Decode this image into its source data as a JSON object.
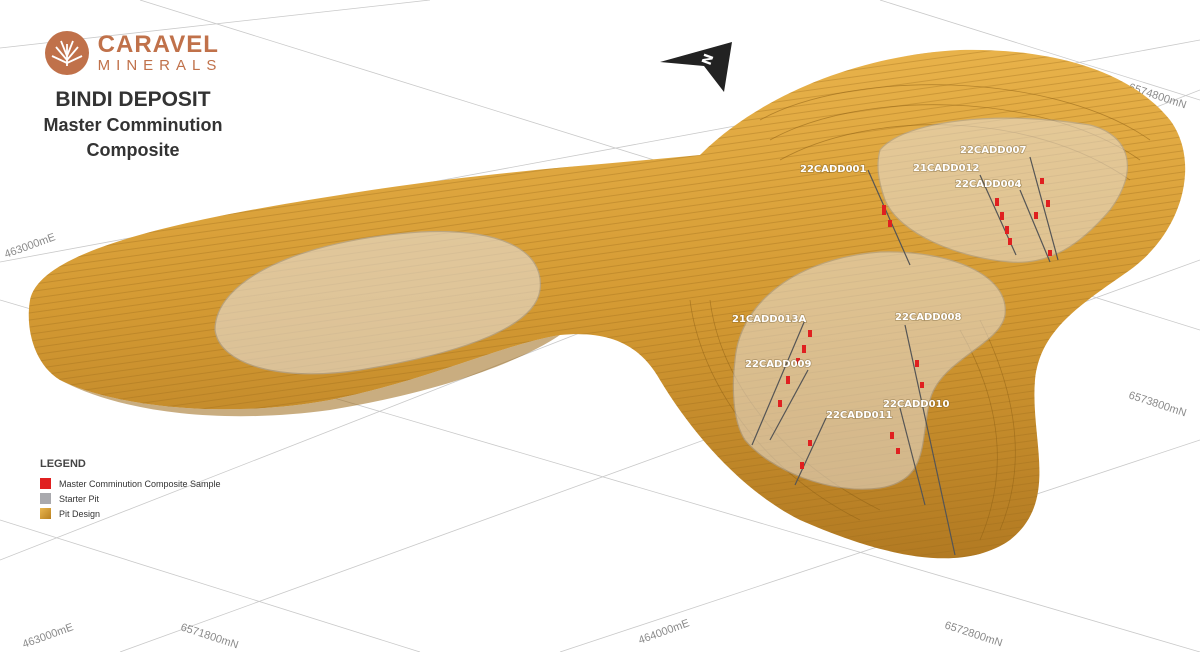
{
  "header": {
    "logo_name": "CARAVEL",
    "logo_sub": "MINERALS",
    "title": "BINDI DEPOSIT",
    "subtitle_line1": "Master Comminution",
    "subtitle_line2": "Composite"
  },
  "grid_labels": {
    "e_463000_top": "463000mE",
    "e_463000_bottom": "463000mE",
    "e_464000": "464000mE",
    "n_6571800": "6571800mN",
    "n_6572800": "6572800mN",
    "n_6573800": "6573800mN",
    "n_6574800": "6574800mN"
  },
  "drill_holes": [
    {
      "id": "22CADD001"
    },
    {
      "id": "22CADD007"
    },
    {
      "id": "21CADD012"
    },
    {
      "id": "22CADD004"
    },
    {
      "id": "21CADD013A"
    },
    {
      "id": "22CADD008"
    },
    {
      "id": "22CADD009"
    },
    {
      "id": "22CADD010"
    },
    {
      "id": "22CADD011"
    }
  ],
  "legend": {
    "title": "LEGEND",
    "items": [
      {
        "label": "Master Comminution Composite Sample",
        "color": "#e02020"
      },
      {
        "label": "Starter Pit",
        "color": "#a9a9ad"
      },
      {
        "label": "Pit Design",
        "color": "#d9a03a"
      }
    ]
  },
  "icons": {
    "north_arrow": "north-arrow-icon",
    "logo_mark": "caravel-logo-icon"
  },
  "colors": {
    "pit_gold": "#d9a03a",
    "pit_dark": "#a8721d",
    "starter_pit": "#d8d6d8",
    "sample": "#e02020"
  }
}
